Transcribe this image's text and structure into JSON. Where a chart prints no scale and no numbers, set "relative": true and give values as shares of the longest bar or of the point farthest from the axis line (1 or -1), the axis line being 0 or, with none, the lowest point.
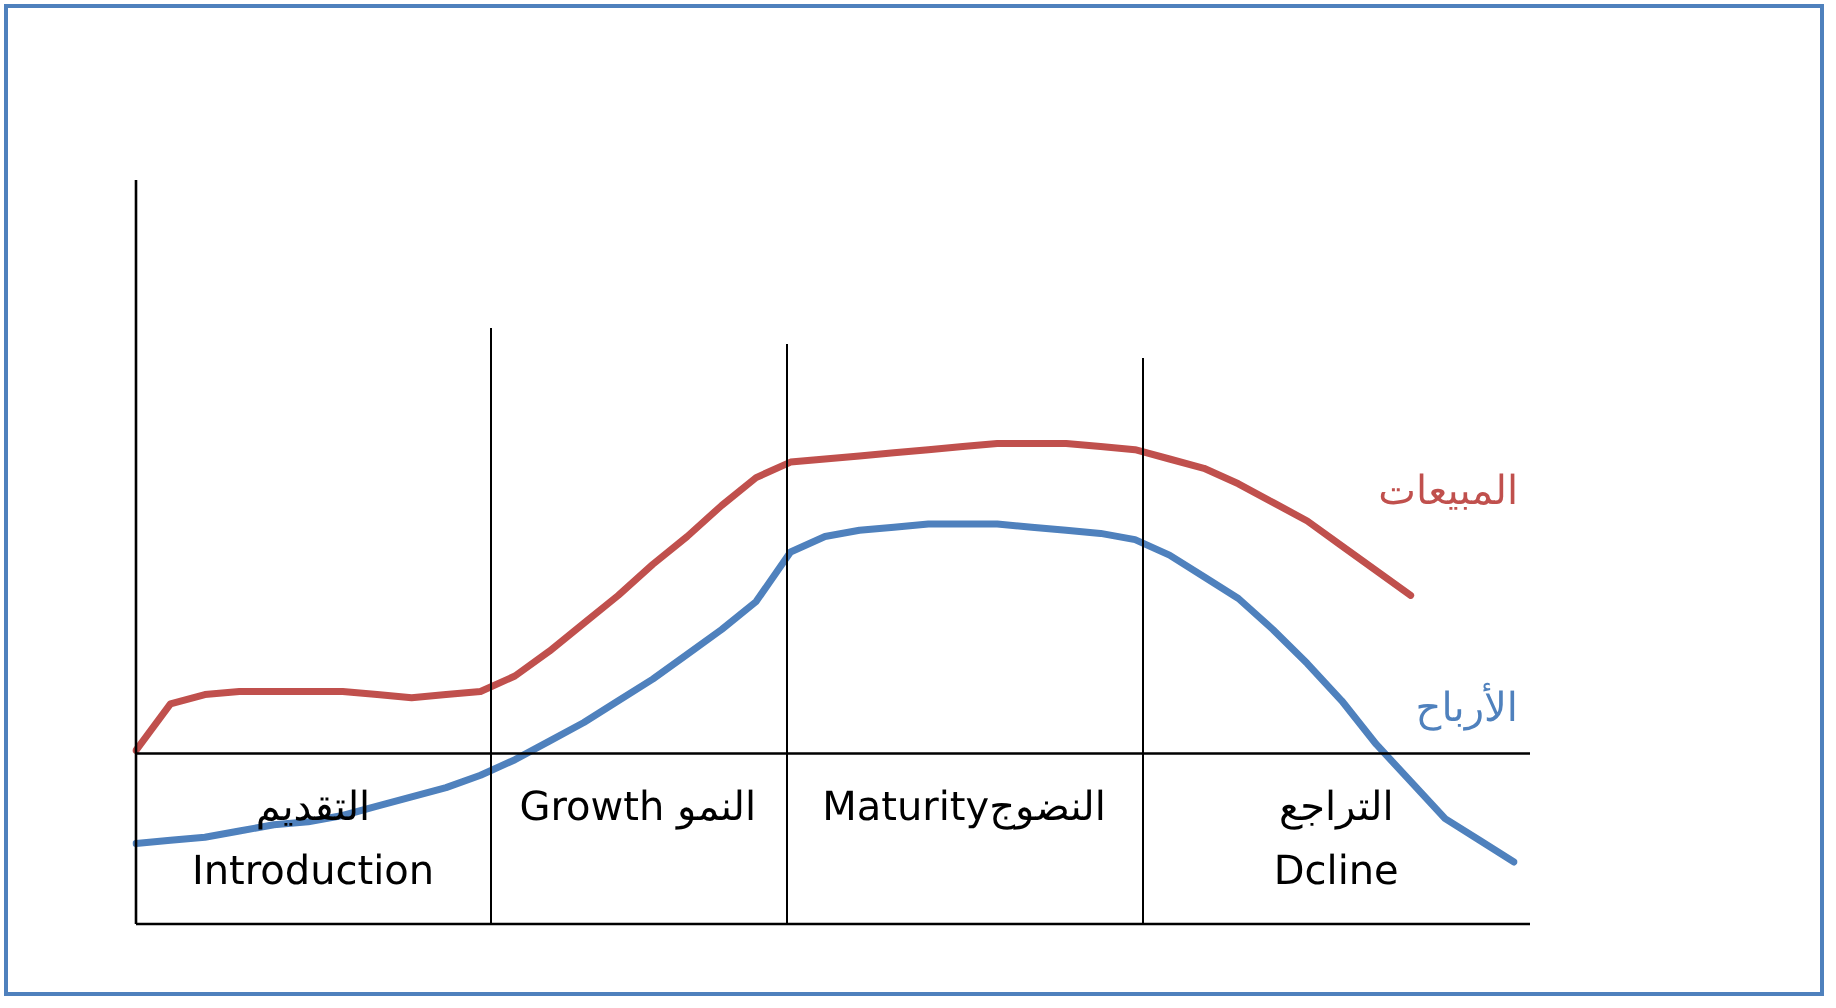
{
  "chart_data": {
    "type": "line",
    "relative": true,
    "marker": "none",
    "line_style": "solid",
    "categories": [
      null,
      null,
      null,
      null,
      null,
      null,
      null,
      null,
      null,
      null,
      null,
      null,
      null,
      null,
      null,
      null,
      null,
      null,
      null,
      null,
      null,
      null,
      null,
      null,
      null,
      null,
      null,
      null,
      null,
      null,
      null,
      null,
      null,
      null,
      null,
      null,
      null,
      null,
      null,
      null,
      null
    ],
    "series": [
      {
        "name": "المبيعات",
        "color": "#c0504d",
        "values": [
          0.01,
          0.16,
          0.19,
          0.2,
          0.2,
          0.2,
          0.2,
          0.19,
          0.18,
          0.19,
          0.2,
          0.25,
          0.33,
          0.42,
          0.51,
          0.61,
          0.7,
          0.8,
          0.89,
          0.94,
          0.95,
          0.96,
          0.97,
          0.98,
          0.99,
          1,
          1,
          1,
          0.99,
          0.98,
          0.95,
          0.92,
          0.87,
          0.81,
          0.75,
          0.67,
          0.59,
          0.51,
          null,
          null,
          null
        ]
      },
      {
        "name": "الأرباح",
        "color": "#4f81bd",
        "values": [
          -0.29,
          -0.28,
          -0.27,
          -0.25,
          -0.23,
          -0.22,
          -0.2,
          -0.17,
          -0.14,
          -0.11,
          -0.07,
          -0.02,
          0.04,
          0.1,
          0.17,
          0.24,
          0.32,
          0.4,
          0.49,
          0.65,
          0.7,
          0.72,
          0.73,
          0.74,
          0.74,
          0.74,
          0.73,
          0.72,
          0.71,
          0.69,
          0.64,
          0.57,
          0.5,
          0.4,
          0.29,
          0.17,
          0.03,
          -0.09,
          -0.21,
          -0.28,
          -0.35
        ]
      }
    ],
    "annotations": [
      "التقديم\nIntroduction",
      "Growth النمو",
      "Maturityالنضوج",
      "التراجع\nDcline"
    ]
  }
}
